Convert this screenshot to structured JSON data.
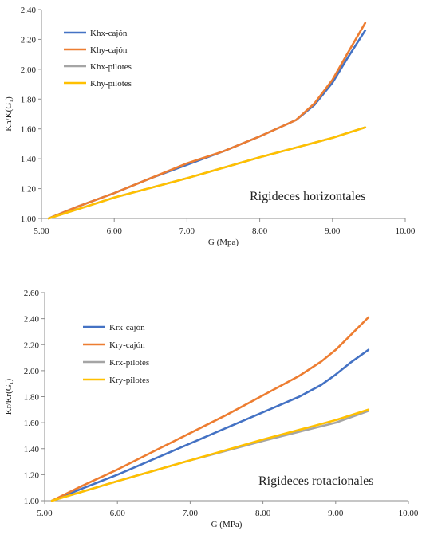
{
  "chart_data": [
    {
      "type": "line",
      "title": "",
      "annotation": "Rigideces horizontales",
      "xlabel": "G (Mpa)",
      "ylabel": "Kh/K(G₁)",
      "xlim": [
        5.0,
        10.0
      ],
      "ylim": [
        1.0,
        2.4
      ],
      "xticks": [
        "5.00",
        "6.00",
        "7.00",
        "8.00",
        "9.00",
        "10.00"
      ],
      "yticks": [
        "1.00",
        "1.20",
        "1.40",
        "1.60",
        "1.80",
        "2.00",
        "2.20",
        "2.40"
      ],
      "grid": false,
      "legend_position": "top-left",
      "series": [
        {
          "name": "Khx-cajón",
          "color": "#4472C4",
          "x": [
            5.1,
            5.5,
            6.0,
            6.5,
            7.0,
            7.5,
            8.0,
            8.5,
            8.75,
            9.0,
            9.2,
            9.45
          ],
          "y": [
            1.0,
            1.08,
            1.17,
            1.27,
            1.36,
            1.45,
            1.55,
            1.66,
            1.76,
            1.91,
            2.07,
            2.26
          ]
        },
        {
          "name": "Khy-cajón",
          "color": "#ED7D31",
          "x": [
            5.1,
            5.5,
            6.0,
            6.5,
            7.0,
            7.5,
            8.0,
            8.5,
            8.75,
            9.0,
            9.2,
            9.45
          ],
          "y": [
            1.0,
            1.08,
            1.17,
            1.27,
            1.37,
            1.45,
            1.55,
            1.66,
            1.77,
            1.93,
            2.1,
            2.31
          ]
        },
        {
          "name": "Khx-pilotes",
          "color": "#A5A5A5",
          "x": [
            5.1,
            6.0,
            7.0,
            8.0,
            9.0,
            9.45
          ],
          "y": [
            1.0,
            1.14,
            1.27,
            1.41,
            1.54,
            1.61
          ]
        },
        {
          "name": "Khy-pilotes",
          "color": "#FFC000",
          "x": [
            5.1,
            6.0,
            7.0,
            8.0,
            9.0,
            9.45
          ],
          "y": [
            1.0,
            1.14,
            1.27,
            1.41,
            1.54,
            1.61
          ]
        }
      ]
    },
    {
      "type": "line",
      "title": "",
      "annotation": "Rigideces rotacionales",
      "xlabel": "G (MPa)",
      "ylabel": "Kr/Kr(G₁)",
      "xlim": [
        5.0,
        10.0
      ],
      "ylim": [
        1.0,
        2.6
      ],
      "xticks": [
        "5.00",
        "6.00",
        "7.00",
        "8.00",
        "9.00",
        "10.00"
      ],
      "yticks": [
        "1.00",
        "1.20",
        "1.40",
        "1.60",
        "1.80",
        "2.00",
        "2.20",
        "2.40",
        "2.60"
      ],
      "grid": false,
      "legend_position": "top-left",
      "series": [
        {
          "name": "Krx-cajón",
          "color": "#4472C4",
          "x": [
            5.1,
            5.5,
            6.0,
            6.5,
            7.0,
            7.5,
            8.0,
            8.5,
            8.8,
            9.0,
            9.2,
            9.45
          ],
          "y": [
            1.0,
            1.09,
            1.2,
            1.32,
            1.44,
            1.56,
            1.68,
            1.8,
            1.89,
            1.97,
            2.06,
            2.16
          ]
        },
        {
          "name": "Kry-cajón",
          "color": "#ED7D31",
          "x": [
            5.1,
            5.5,
            6.0,
            6.5,
            7.0,
            7.5,
            8.0,
            8.5,
            8.8,
            9.0,
            9.2,
            9.45
          ],
          "y": [
            1.0,
            1.11,
            1.24,
            1.38,
            1.52,
            1.66,
            1.81,
            1.96,
            2.07,
            2.16,
            2.27,
            2.41
          ]
        },
        {
          "name": "Krx-pilotes",
          "color": "#A5A5A5",
          "x": [
            5.1,
            6.0,
            7.0,
            8.0,
            9.0,
            9.45
          ],
          "y": [
            1.0,
            1.15,
            1.31,
            1.46,
            1.6,
            1.69
          ]
        },
        {
          "name": "Kry-pilotes",
          "color": "#FFC000",
          "x": [
            5.1,
            6.0,
            7.0,
            8.0,
            9.0,
            9.45
          ],
          "y": [
            1.0,
            1.15,
            1.31,
            1.47,
            1.62,
            1.7
          ]
        }
      ]
    }
  ]
}
